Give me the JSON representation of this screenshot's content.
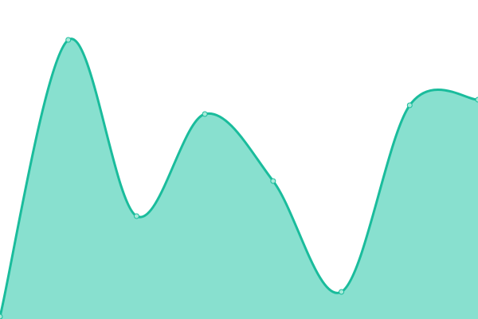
{
  "chart_data": {
    "type": "area",
    "title": "",
    "xlabel": "",
    "ylabel": "",
    "x": [
      0,
      1,
      2,
      3,
      4,
      5,
      6,
      7
    ],
    "series": [
      {
        "values": [
          3,
          350,
          129,
          257,
          173,
          34,
          268,
          275
        ]
      }
    ],
    "ylim": [
      0,
      400
    ],
    "xlim": [
      0,
      7
    ],
    "grid": false,
    "legend": "none",
    "smooth": true,
    "colors": {
      "line": "#1abc9c",
      "fill": "#88e0cf",
      "point_fill": "#a8ead9"
    }
  }
}
